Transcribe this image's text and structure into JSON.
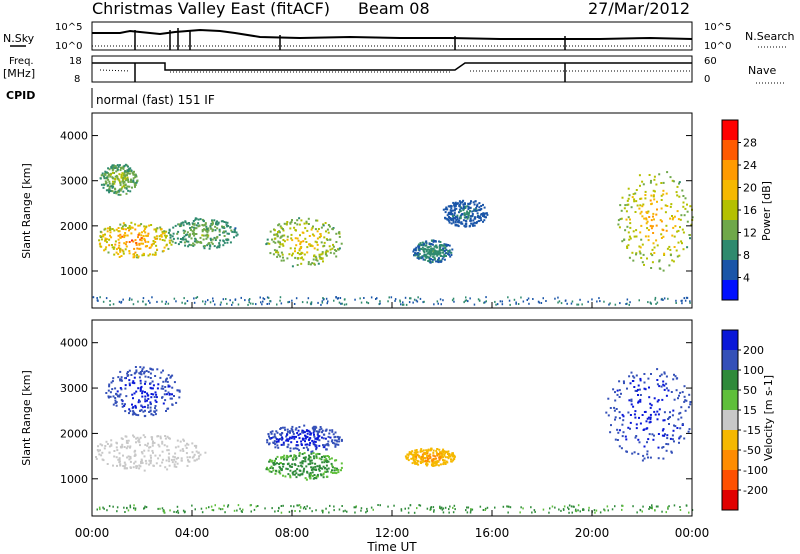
{
  "header": {
    "title": "Christmas Valley East (fitACF)",
    "beam": "Beam 08",
    "date": "27/Mar/2012"
  },
  "noise_panel": {
    "left_label": "N.Sky",
    "right_label": "N.Search",
    "left_ticks": [
      "10^5",
      "10^0"
    ],
    "right_ticks": [
      "10^5",
      "10^0"
    ]
  },
  "freq_panel": {
    "left_label_1": "Freq.",
    "left_label_2": "[MHz]",
    "right_label": "Nave",
    "left_ticks": [
      "18",
      "8"
    ],
    "right_ticks": [
      "60",
      "0"
    ]
  },
  "cpid_panel": {
    "label": "CPID",
    "text": "normal (fast) 151 IF"
  },
  "x_axis": {
    "label": "Time UT",
    "ticks": [
      "00:00",
      "04:00",
      "08:00",
      "12:00",
      "16:00",
      "20:00",
      "00:00"
    ]
  },
  "power_panel": {
    "ylabel": "Slant Range [km]",
    "yticks": [
      "1000",
      "2000",
      "3000",
      "4000"
    ],
    "colorbar_label": "Power [dB]",
    "colorbar_ticks": [
      "28",
      "24",
      "20",
      "16",
      "12",
      "8",
      "4"
    ],
    "colorbar_colors": [
      "#ff0000",
      "#ff5a00",
      "#ff9a00",
      "#f5b800",
      "#b4c000",
      "#6fa84a",
      "#2f8a6e",
      "#1a55a8",
      "#0010ff"
    ]
  },
  "velocity_panel": {
    "ylabel": "Slant Range [km]",
    "yticks": [
      "1000",
      "2000",
      "3000",
      "4000"
    ],
    "colorbar_label": "Velocity [m s-1]",
    "colorbar_ticks": [
      "200",
      "100",
      "50",
      "15",
      "-15",
      "-50",
      "-100",
      "-200"
    ],
    "colorbar_colors": [
      "#0a18d8",
      "#3450b8",
      "#2f8a3a",
      "#5fbf3a",
      "#c8c8c8",
      "#f5b800",
      "#ff8c00",
      "#ff5000",
      "#e00000"
    ]
  },
  "chart_data": {
    "type": "heatmap",
    "title": "Christmas Valley East (fitACF)",
    "xlabel": "Time UT",
    "ylabel": "Slant Range [km]",
    "xlim": [
      "00:00",
      "24:00"
    ],
    "ylim": [
      180,
      4500
    ],
    "power_regions": [
      {
        "t": [
          0.1,
          3.2
        ],
        "r": [
          1300,
          2100
        ],
        "power": 24
      },
      {
        "t": [
          0.3,
          1.8
        ],
        "r": [
          2700,
          3400
        ],
        "power": 14
      },
      {
        "t": [
          3.0,
          5.8
        ],
        "r": [
          1500,
          2200
        ],
        "power": 12
      },
      {
        "t": [
          6.9,
          10.0
        ],
        "r": [
          1100,
          2200
        ],
        "power": 18
      },
      {
        "t": [
          12.8,
          14.4
        ],
        "r": [
          1200,
          1700
        ],
        "power": 8
      },
      {
        "t": [
          14.0,
          15.8
        ],
        "r": [
          2000,
          2600
        ],
        "power": 6
      },
      {
        "t": [
          21.0,
          24.0
        ],
        "r": [
          1000,
          3300
        ],
        "power": 20
      }
    ],
    "velocity_regions": [
      {
        "t": [
          0.0,
          4.5
        ],
        "r": [
          1200,
          2000
        ],
        "velocity": 0
      },
      {
        "t": [
          0.5,
          3.5
        ],
        "r": [
          2400,
          3500
        ],
        "velocity": 200
      },
      {
        "t": [
          6.9,
          10.0
        ],
        "r": [
          1600,
          2200
        ],
        "velocity": 200
      },
      {
        "t": [
          6.9,
          10.0
        ],
        "r": [
          1000,
          1600
        ],
        "velocity": 50
      },
      {
        "t": [
          12.5,
          14.5
        ],
        "r": [
          1300,
          1700
        ],
        "velocity": -60
      },
      {
        "t": [
          20.5,
          24.0
        ],
        "r": [
          1400,
          3500
        ],
        "velocity": 200
      }
    ]
  }
}
